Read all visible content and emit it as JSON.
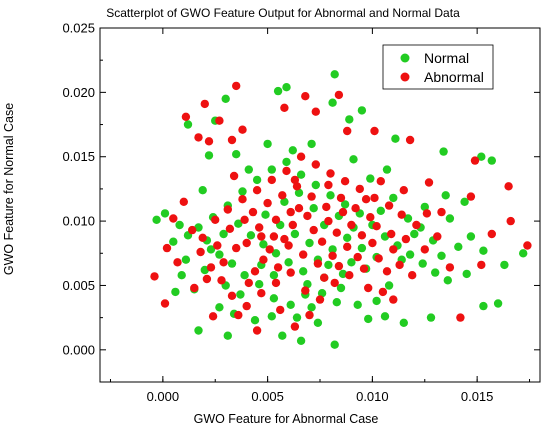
{
  "chart_data": {
    "type": "scatter",
    "title": "Scatterplot of GWO Feature Output for Abnormal and Normal Data",
    "xlabel": "GWO Feature for Abnormal Case",
    "ylabel": "GWO Feature for Normal Case",
    "xlim": [
      -0.003,
      0.018
    ],
    "ylim": [
      -0.0025,
      0.025
    ],
    "xticks": [
      0.0,
      0.005,
      0.01,
      0.015
    ],
    "xtick_labels": [
      "0.000",
      "0.005",
      "0.010",
      "0.015"
    ],
    "yticks": [
      0.0,
      0.005,
      0.01,
      0.015,
      0.02,
      0.025
    ],
    "ytick_labels": [
      "0.000",
      "0.005",
      "0.010",
      "0.015",
      "0.020",
      "0.025"
    ],
    "grid": false,
    "legend_position": "top-right",
    "series": [
      {
        "name": "Normal",
        "color": "#22cc22",
        "points": [
          [
            0.003,
            0.0195
          ],
          [
            0.0025,
            0.0178
          ],
          [
            0.0012,
            0.0175
          ],
          [
            0.0022,
            0.0151
          ],
          [
            0.0055,
            0.0201
          ],
          [
            0.0059,
            0.0204
          ],
          [
            0.0082,
            0.0214
          ],
          [
            0.0081,
            0.0192
          ],
          [
            0.0089,
            0.0179
          ],
          [
            0.0095,
            0.0186
          ],
          [
            0.0111,
            0.0164
          ],
          [
            0.0152,
            0.015
          ],
          [
            0.0157,
            0.0147
          ],
          [
            0.0134,
            0.0154
          ],
          [
            0.005,
            0.016
          ],
          [
            0.0071,
            0.016
          ],
          [
            0.0035,
            0.0152
          ],
          [
            0.0019,
            0.0124
          ],
          [
            0.0001,
            0.0106
          ],
          [
            -0.0003,
            0.0101
          ],
          [
            0.0012,
            0.0089
          ],
          [
            0.0005,
            0.0084
          ],
          [
            0.0009,
            0.0058
          ],
          [
            0.0015,
            0.0047
          ],
          [
            0.0006,
            0.0045
          ],
          [
            0.0017,
            0.0015
          ],
          [
            0.0027,
            0.0033
          ],
          [
            0.0031,
            0.0011
          ],
          [
            0.0044,
            0.0023
          ],
          [
            0.0052,
            0.0026
          ],
          [
            0.0066,
            0.0007
          ],
          [
            0.0082,
            0.0004
          ],
          [
            0.0074,
            0.0021
          ],
          [
            0.0098,
            0.0024
          ],
          [
            0.0106,
            0.0026
          ],
          [
            0.0115,
            0.0021
          ],
          [
            0.0128,
            0.0025
          ],
          [
            0.0153,
            0.0034
          ],
          [
            0.016,
            0.0036
          ],
          [
            0.0145,
            0.0059
          ],
          [
            0.0141,
            0.008
          ],
          [
            0.0147,
            0.0088
          ],
          [
            0.0153,
            0.0077
          ],
          [
            0.0163,
            0.0066
          ],
          [
            0.0172,
            0.0075
          ],
          [
            0.0137,
            0.0102
          ],
          [
            0.0144,
            0.0115
          ],
          [
            0.0135,
            0.012
          ],
          [
            0.0125,
            0.0111
          ],
          [
            0.012,
            0.009
          ],
          [
            0.0114,
            0.007
          ],
          [
            0.0108,
            0.005
          ],
          [
            0.0102,
            0.0038
          ],
          [
            0.0093,
            0.0035
          ],
          [
            0.0085,
            0.0048
          ],
          [
            0.0077,
            0.0056
          ],
          [
            0.0068,
            0.0043
          ],
          [
            0.0061,
            0.0035
          ],
          [
            0.0053,
            0.004
          ],
          [
            0.0046,
            0.0051
          ],
          [
            0.0039,
            0.0058
          ],
          [
            0.0033,
            0.0067
          ],
          [
            0.0027,
            0.0074
          ],
          [
            0.0021,
            0.0085
          ],
          [
            0.0017,
            0.0095
          ],
          [
            0.0024,
            0.0103
          ],
          [
            0.0031,
            0.0112
          ],
          [
            0.0038,
            0.0123
          ],
          [
            0.0045,
            0.0132
          ],
          [
            0.0052,
            0.014
          ],
          [
            0.0059,
            0.0146
          ],
          [
            0.0066,
            0.0136
          ],
          [
            0.0073,
            0.0128
          ],
          [
            0.008,
            0.012
          ],
          [
            0.0087,
            0.0113
          ],
          [
            0.0094,
            0.0106
          ],
          [
            0.01,
            0.0097
          ],
          [
            0.0106,
            0.0088
          ],
          [
            0.0112,
            0.0081
          ],
          [
            0.0118,
            0.0074
          ],
          [
            0.0124,
            0.0067
          ],
          [
            0.013,
            0.006
          ],
          [
            0.0136,
            0.0054
          ],
          [
            0.0042,
            0.0089
          ],
          [
            0.0048,
            0.0082
          ],
          [
            0.0054,
            0.0075
          ],
          [
            0.006,
            0.0068
          ],
          [
            0.0067,
            0.0061
          ],
          [
            0.0074,
            0.007
          ],
          [
            0.0081,
            0.0078
          ],
          [
            0.0088,
            0.0087
          ],
          [
            0.0095,
            0.0079
          ],
          [
            0.0102,
            0.0072
          ],
          [
            0.0049,
            0.0105
          ],
          [
            0.0056,
            0.0097
          ],
          [
            0.0063,
            0.009
          ],
          [
            0.007,
            0.0083
          ],
          [
            0.0077,
            0.0097
          ],
          [
            0.0084,
            0.0104
          ],
          [
            0.0091,
            0.0095
          ],
          [
            0.0036,
            0.0098
          ],
          [
            0.0029,
            0.009
          ],
          [
            0.0023,
            0.0078
          ],
          [
            0.003,
            0.005
          ],
          [
            0.0037,
            0.0043
          ],
          [
            0.0058,
            0.0115
          ],
          [
            0.0065,
            0.0122
          ],
          [
            0.0072,
            0.011
          ],
          [
            0.0079,
            0.0066
          ],
          [
            0.0086,
            0.0059
          ],
          [
            0.0097,
            0.0063
          ],
          [
            0.0104,
            0.0108
          ],
          [
            0.011,
            0.0118
          ],
          [
            0.0117,
            0.0102
          ],
          [
            0.0123,
            0.0095
          ],
          [
            0.0129,
            0.0085
          ],
          [
            0.0133,
            0.0073
          ],
          [
            0.0011,
            0.007
          ],
          [
            0.0008,
            0.0097
          ],
          [
            0.0041,
            0.014
          ],
          [
            0.0062,
            0.0155
          ],
          [
            0.0091,
            0.0148
          ],
          [
            0.0099,
            0.0133
          ],
          [
            0.0107,
            0.014
          ],
          [
            0.0047,
            0.0066
          ],
          [
            0.0053,
            0.0058
          ],
          [
            0.0069,
            0.0051
          ],
          [
            0.0076,
            0.0044
          ],
          [
            0.0083,
            0.0037
          ],
          [
            0.009,
            0.0068
          ],
          [
            0.0034,
            0.0028
          ],
          [
            0.0057,
            0.0011
          ],
          [
            0.0064,
            0.0025
          ],
          [
            0.0071,
            0.0033
          ],
          [
            0.002,
            0.0062
          ]
        ]
      },
      {
        "name": "Abnormal",
        "color": "#ee1111",
        "points": [
          [
            0.0011,
            0.0181
          ],
          [
            0.002,
            0.0191
          ],
          [
            0.0035,
            0.0205
          ],
          [
            0.0038,
            0.0171
          ],
          [
            0.0027,
            0.0178
          ],
          [
            0.0017,
            0.0165
          ],
          [
            0.0022,
            0.0162
          ],
          [
            0.0033,
            0.0163
          ],
          [
            0.0068,
            0.0197
          ],
          [
            0.0073,
            0.0185
          ],
          [
            0.0058,
            0.0188
          ],
          [
            0.0084,
            0.0198
          ],
          [
            0.0088,
            0.017
          ],
          [
            0.0101,
            0.017
          ],
          [
            0.0118,
            0.0163
          ],
          [
            0.0149,
            0.0147
          ],
          [
            0.0165,
            0.0127
          ],
          [
            0.0127,
            0.013
          ],
          [
            0.0147,
            0.0119
          ],
          [
            0.0133,
            0.0107
          ],
          [
            0.0126,
            0.0106
          ],
          [
            0.0157,
            0.009
          ],
          [
            0.0174,
            0.0081
          ],
          [
            0.0166,
            0.01
          ],
          [
            0.0152,
            0.0066
          ],
          [
            0.0142,
            0.0025
          ],
          [
            0.011,
            0.0039
          ],
          [
            0.0105,
            0.0045
          ],
          [
            0.0098,
            0.0048
          ],
          [
            0.0063,
            0.0018
          ],
          [
            0.0045,
            0.0015
          ],
          [
            0.0036,
            0.0027
          ],
          [
            0.0024,
            0.0026
          ],
          [
            0.0001,
            0.0036
          ],
          [
            -0.0004,
            0.0057
          ],
          [
            0.0002,
            0.0079
          ],
          [
            0.0005,
            0.0102
          ],
          [
            0.001,
            0.0115
          ],
          [
            0.0014,
            0.0093
          ],
          [
            0.0018,
            0.0076
          ],
          [
            0.0023,
            0.0064
          ],
          [
            0.0028,
            0.0054
          ],
          [
            0.0033,
            0.0042
          ],
          [
            0.004,
            0.0034
          ],
          [
            0.0047,
            0.0044
          ],
          [
            0.0054,
            0.0052
          ],
          [
            0.0061,
            0.006
          ],
          [
            0.0068,
            0.0046
          ],
          [
            0.0075,
            0.0039
          ],
          [
            0.0082,
            0.0052
          ],
          [
            0.0089,
            0.0058
          ],
          [
            0.0096,
            0.0063
          ],
          [
            0.0103,
            0.0071
          ],
          [
            0.011,
            0.0078
          ],
          [
            0.0116,
            0.0086
          ],
          [
            0.0121,
            0.0097
          ],
          [
            0.0114,
            0.0105
          ],
          [
            0.0108,
            0.0112
          ],
          [
            0.0101,
            0.0118
          ],
          [
            0.0094,
            0.0125
          ],
          [
            0.0087,
            0.0131
          ],
          [
            0.008,
            0.0137
          ],
          [
            0.0073,
            0.0144
          ],
          [
            0.0066,
            0.015
          ],
          [
            0.0059,
            0.0139
          ],
          [
            0.0052,
            0.0132
          ],
          [
            0.0045,
            0.0124
          ],
          [
            0.0038,
            0.0117
          ],
          [
            0.0031,
            0.0109
          ],
          [
            0.0025,
            0.0101
          ],
          [
            0.0019,
            0.0087
          ],
          [
            0.0026,
            0.0081
          ],
          [
            0.0032,
            0.0094
          ],
          [
            0.0039,
            0.0101
          ],
          [
            0.0046,
            0.0095
          ],
          [
            0.0053,
            0.0088
          ],
          [
            0.006,
            0.0081
          ],
          [
            0.0067,
            0.0074
          ],
          [
            0.0074,
            0.0067
          ],
          [
            0.0081,
            0.0073
          ],
          [
            0.0088,
            0.008
          ],
          [
            0.0095,
            0.0089
          ],
          [
            0.0102,
            0.0096
          ],
          [
            0.0109,
            0.009
          ],
          [
            0.0043,
            0.0107
          ],
          [
            0.005,
            0.0114
          ],
          [
            0.0057,
            0.012
          ],
          [
            0.0064,
            0.0127
          ],
          [
            0.0071,
            0.0119
          ],
          [
            0.0078,
            0.0111
          ],
          [
            0.0085,
            0.0118
          ],
          [
            0.0092,
            0.011
          ],
          [
            0.0099,
            0.0103
          ],
          [
            0.0048,
            0.007
          ],
          [
            0.0055,
            0.0064
          ],
          [
            0.0062,
            0.0097
          ],
          [
            0.0069,
            0.0104
          ],
          [
            0.0076,
            0.0084
          ],
          [
            0.0083,
            0.0091
          ],
          [
            0.009,
            0.0097
          ],
          [
            0.0044,
            0.0061
          ],
          [
            0.0051,
            0.0078
          ],
          [
            0.0058,
            0.0086
          ],
          [
            0.0065,
            0.011
          ],
          [
            0.0072,
            0.0093
          ],
          [
            0.0079,
            0.01
          ],
          [
            0.0086,
            0.0107
          ],
          [
            0.0093,
            0.0072
          ],
          [
            0.01,
            0.0083
          ],
          [
            0.0107,
            0.0061
          ],
          [
            0.0113,
            0.0066
          ],
          [
            0.0119,
            0.0058
          ],
          [
            0.0125,
            0.0078
          ],
          [
            0.0131,
            0.0088
          ],
          [
            0.0137,
            0.0064
          ],
          [
            0.0035,
            0.0079
          ],
          [
            0.0029,
            0.0068
          ],
          [
            0.0021,
            0.0055
          ],
          [
            0.0015,
            0.0048
          ],
          [
            0.0007,
            0.0068
          ],
          [
            0.0041,
            0.0052
          ],
          [
            0.0056,
            0.0031
          ],
          [
            0.007,
            0.0027
          ],
          [
            0.0077,
            0.0056
          ],
          [
            0.0084,
            0.0065
          ],
          [
            0.0061,
            0.0107
          ],
          [
            0.0054,
            0.0101
          ],
          [
            0.0047,
            0.0088
          ],
          [
            0.004,
            0.0083
          ],
          [
            0.0034,
            0.0135
          ],
          [
            0.0063,
            0.0132
          ],
          [
            0.0079,
            0.0128
          ],
          [
            0.0097,
            0.0117
          ],
          [
            0.0104,
            0.0131
          ],
          [
            0.0115,
            0.0124
          ]
        ]
      }
    ]
  }
}
